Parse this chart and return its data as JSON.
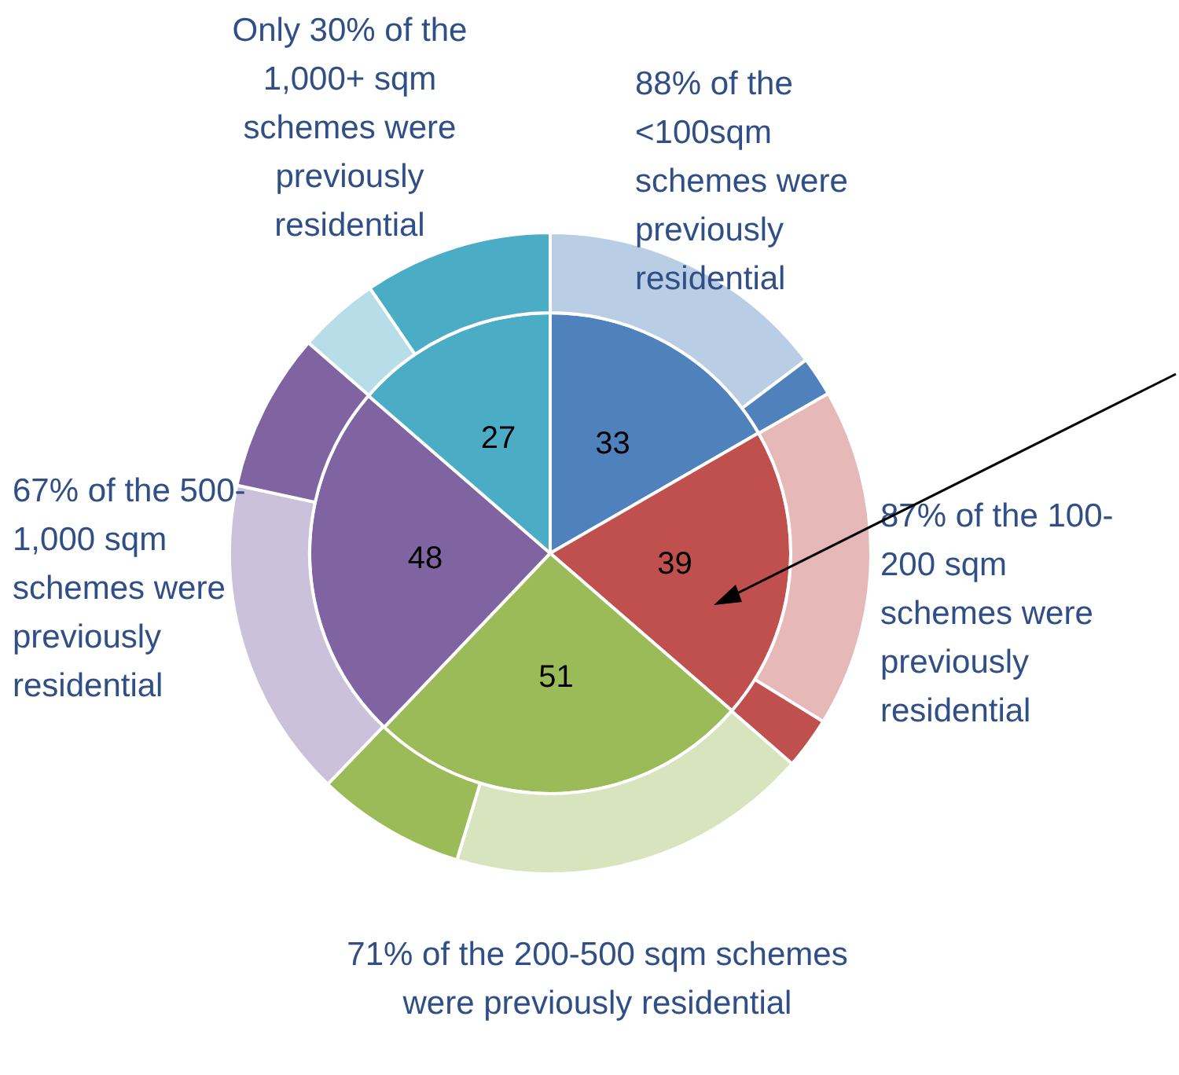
{
  "chart_data": {
    "type": "pie",
    "series": [
      {
        "values": [
          33,
          39,
          51,
          48,
          27
        ],
        "colors": [
          "#4f81bd",
          "#c0504d",
          "#9bbb59",
          "#8064a2",
          "#4bacc6"
        ],
        "value_labels": [
          "33",
          "39",
          "51",
          "48",
          "27"
        ]
      },
      {
        "values": [
          14.7,
          2.0,
          17.1,
          2.6,
          18.3,
          7.5,
          16.2,
          8.0,
          4.1,
          9.5
        ],
        "colors": [
          "#b9cde5",
          "#4f81bd",
          "#e6b9b8",
          "#c0504d",
          "#d7e4bd",
          "#9bbb59",
          "#ccc1da",
          "#8064a2",
          "#b7dee8",
          "#4bacc6"
        ]
      }
    ],
    "annotations": [
      "Only 30% of the 1,000+ sqm schemes were previously residential",
      "88% of the <100sqm schemes were previously residential",
      "87% of the 100-200 sqm schemes were previously residential",
      "71% of the 200-500 sqm schemes were previously residential",
      "67% of the 500-1,000 sqm schemes were previously residential"
    ]
  }
}
